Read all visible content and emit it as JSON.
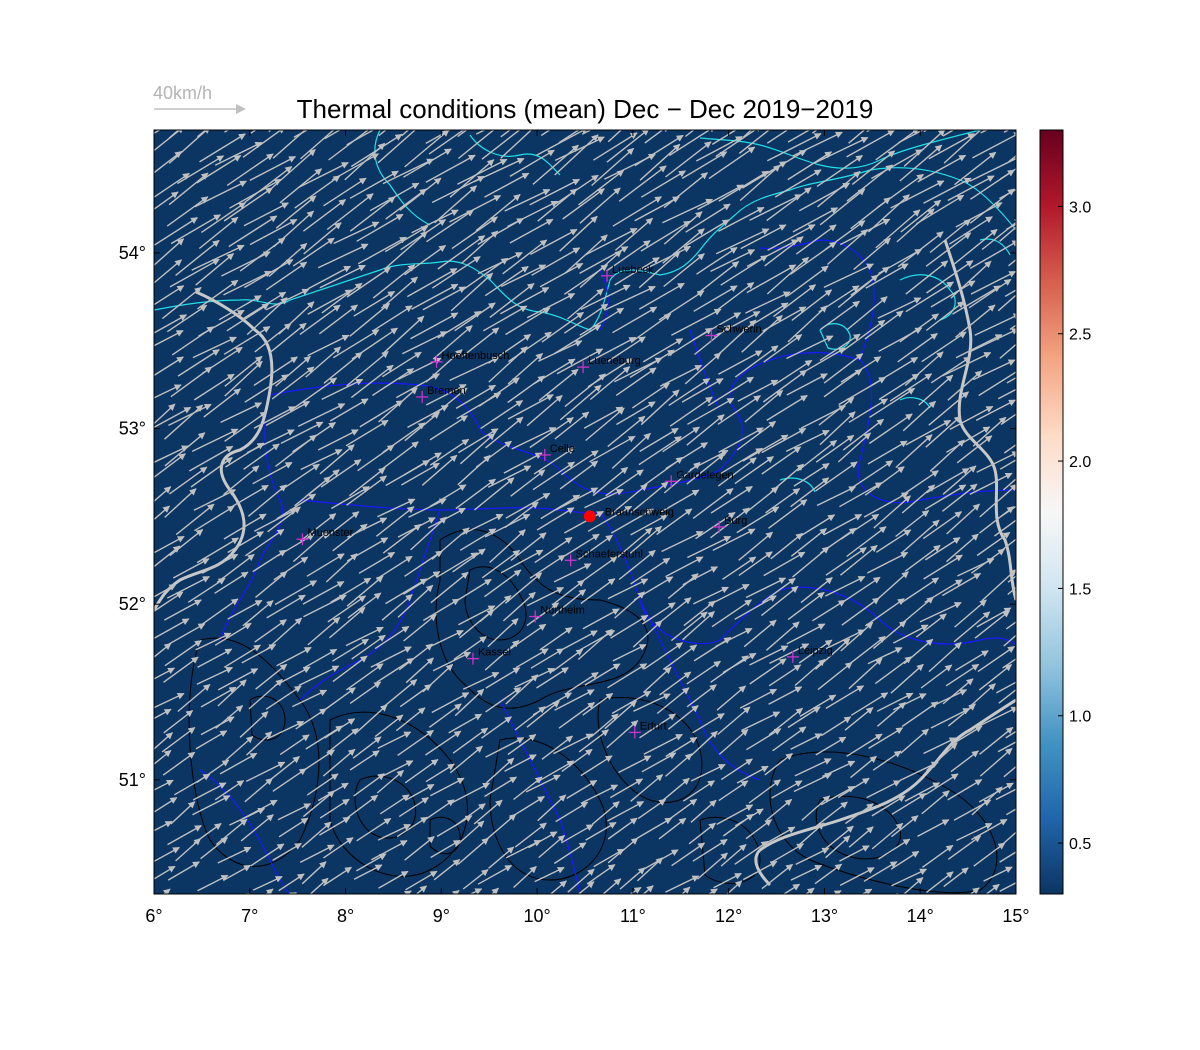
{
  "title": "Thermal conditions (mean) Dec − Dec  2019−2019",
  "wind_reference": {
    "label": "40km/h"
  },
  "map": {
    "background_color": "#0b3563",
    "lon_range": [
      6,
      15
    ],
    "lat_range": [
      50.35,
      54.7
    ],
    "x_ticks": [
      {
        "value": 6,
        "label": "6°"
      },
      {
        "value": 7,
        "label": "7°"
      },
      {
        "value": 8,
        "label": "8°"
      },
      {
        "value": 9,
        "label": "9°"
      },
      {
        "value": 10,
        "label": "10°"
      },
      {
        "value": 11,
        "label": "11°"
      },
      {
        "value": 12,
        "label": "12°"
      },
      {
        "value": 13,
        "label": "13°"
      },
      {
        "value": 14,
        "label": "14°"
      },
      {
        "value": 15,
        "label": "15°"
      }
    ],
    "y_ticks": [
      {
        "value": 51,
        "label": "51°"
      },
      {
        "value": 52,
        "label": "52°"
      },
      {
        "value": 53,
        "label": "53°"
      },
      {
        "value": 54,
        "label": "54°"
      }
    ],
    "cities": [
      {
        "name": "Luebeck",
        "lon": 10.73,
        "lat": 53.87
      },
      {
        "name": "Schwerin",
        "lon": 11.82,
        "lat": 53.53
      },
      {
        "name": "Hoeftenbusch",
        "lon": 8.95,
        "lat": 53.38
      },
      {
        "name": "Lueneburg",
        "lon": 10.48,
        "lat": 53.35
      },
      {
        "name": "Bremen",
        "lon": 8.8,
        "lat": 53.18
      },
      {
        "name": "Celle",
        "lon": 10.08,
        "lat": 52.85
      },
      {
        "name": "Gardelegen",
        "lon": 11.4,
        "lat": 52.7
      },
      {
        "name": "Muenster",
        "lon": 7.55,
        "lat": 52.37
      },
      {
        "name": "Burg",
        "lon": 11.9,
        "lat": 52.44
      },
      {
        "name": "Schaeferstuhl",
        "lon": 10.35,
        "lat": 52.25
      },
      {
        "name": "Northeim",
        "lon": 9.98,
        "lat": 51.93
      },
      {
        "name": "Kassel",
        "lon": 9.33,
        "lat": 51.69
      },
      {
        "name": "Leipzig",
        "lon": 12.67,
        "lat": 51.7
      },
      {
        "name": "Erfurt",
        "lon": 11.02,
        "lat": 51.27
      }
    ],
    "highlight_point": {
      "name": "Braunschweig",
      "lon": 10.55,
      "lat": 52.5,
      "color": "#ff0000"
    },
    "city_marker_color": "#cc33cc",
    "arrow_color": "#c0c0c0",
    "coast_color": "#22e0e8",
    "border_color": "#1a1aff",
    "river_color": "#c8c8c8"
  },
  "colorbar": {
    "range": [
      0.3,
      3.3
    ],
    "ticks": [
      {
        "value": 0.5,
        "label": "0.5"
      },
      {
        "value": 1.0,
        "label": "1.0"
      },
      {
        "value": 1.5,
        "label": "1.5"
      },
      {
        "value": 2.0,
        "label": "2.0"
      },
      {
        "value": 2.5,
        "label": "2.5"
      },
      {
        "value": 3.0,
        "label": "3.0"
      }
    ],
    "colors": [
      "#0b3563",
      "#2166ac",
      "#4393c3",
      "#92c5de",
      "#d1e5f0",
      "#f7f7f7",
      "#fddbc7",
      "#f4a582",
      "#d6604d",
      "#b2182b",
      "#67001f"
    ]
  }
}
